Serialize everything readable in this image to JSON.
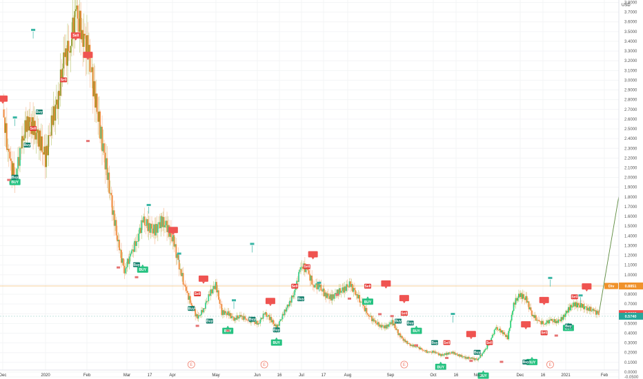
{
  "chart_data": {
    "type": "candlestick",
    "y_unit_label": "USD",
    "y_range": [
      0,
      3.8
    ],
    "y_ticks": [
      "3.8000",
      "3.7000",
      "3.6000",
      "3.5000",
      "3.4000",
      "3.3000",
      "3.2000",
      "3.1000",
      "3.0000",
      "2.9000",
      "2.8000",
      "2.7000",
      "2.6000",
      "2.5000",
      "2.4000",
      "2.3000",
      "2.2000",
      "2.1000",
      "2.0000",
      "1.9000",
      "1.8000",
      "1.7000",
      "1.6000",
      "1.5000",
      "1.4000",
      "1.3000",
      "1.2000",
      "1.1000",
      "1.0000",
      "0.9000",
      "0.8000",
      "0.7000",
      "0.6000",
      "0.5000",
      "0.4000",
      "0.3000",
      "0.2000",
      "0.1000",
      "0.0000",
      "-0.0500"
    ],
    "x_ticks": [
      "Dec",
      "2020",
      "Feb",
      "Mar",
      "17",
      "Apr",
      "May",
      "Jun",
      "16",
      "Jul",
      "17",
      "Aug",
      "Sep",
      "Oct",
      "16",
      "Nov",
      "Dec",
      "16",
      "2021",
      "Feb"
    ],
    "price_badges": [
      {
        "text": "0.8851",
        "value": 0.8851,
        "color": "#f0922b",
        "prefix": "Div"
      },
      {
        "text": "0.6008",
        "value": 0.6008,
        "color": "#ef5350"
      },
      {
        "text": "0.5740",
        "value": 0.574,
        "color": "#26a69a"
      }
    ],
    "close_series": [
      2.7,
      2.2,
      2.0,
      2.3,
      2.6,
      2.5,
      2.4,
      2.2,
      2.55,
      2.8,
      3.2,
      3.35,
      3.7,
      3.5,
      3.3,
      2.9,
      2.5,
      2.1,
      1.7,
      1.3,
      1.05,
      1.2,
      1.35,
      1.55,
      1.5,
      1.45,
      1.55,
      1.5,
      1.35,
      1.1,
      0.85,
      0.7,
      0.55,
      0.65,
      0.8,
      0.9,
      0.62,
      0.6,
      0.55,
      0.57,
      0.55,
      0.52,
      0.5,
      0.6,
      0.55,
      0.45,
      0.58,
      0.7,
      0.82,
      1.1,
      1.05,
      0.9,
      0.88,
      0.8,
      0.76,
      0.82,
      0.85,
      0.9,
      0.82,
      0.7,
      0.6,
      0.52,
      0.48,
      0.46,
      0.52,
      0.4,
      0.32,
      0.28,
      0.26,
      0.23,
      0.2,
      0.21,
      0.17,
      0.19,
      0.2,
      0.17,
      0.15,
      0.14,
      0.13,
      0.2,
      0.3,
      0.45,
      0.42,
      0.35,
      0.7,
      0.8,
      0.75,
      0.6,
      0.52,
      0.5,
      0.53,
      0.52,
      0.55,
      0.65,
      0.7,
      0.68,
      0.66,
      0.63,
      0.6
    ],
    "signals": [
      {
        "type": "sell",
        "label": "",
        "i": 0,
        "v": 2.8
      },
      {
        "type": "buy",
        "label": "BUY",
        "i": 2,
        "v": 1.95
      },
      {
        "type": "sell",
        "label": "Sell",
        "i": 12,
        "v": 3.45
      },
      {
        "type": "sell",
        "label": "",
        "i": 14,
        "v": 3.25
      },
      {
        "type": "buy",
        "label": "BUY",
        "i": 23,
        "v": 1.05
      },
      {
        "type": "sell",
        "label": "",
        "i": 28,
        "v": 1.45
      },
      {
        "type": "sell",
        "label": "",
        "i": 33,
        "v": 0.95
      },
      {
        "type": "buy",
        "label": "BUY",
        "i": 37,
        "v": 0.42
      },
      {
        "type": "sell",
        "label": "",
        "i": 44,
        "v": 0.72
      },
      {
        "type": "buy",
        "label": "BUY",
        "i": 45,
        "v": 0.3
      },
      {
        "type": "sell",
        "label": "",
        "i": 51,
        "v": 1.2
      },
      {
        "type": "sell",
        "label": "",
        "i": 63,
        "v": 0.9
      },
      {
        "type": "buy",
        "label": "BUY",
        "i": 60,
        "v": 0.72
      },
      {
        "type": "sell",
        "label": "",
        "i": 66,
        "v": 0.75
      },
      {
        "type": "buy",
        "label": "BUY",
        "i": 68,
        "v": 0.42
      },
      {
        "type": "buy",
        "label": "BUY",
        "i": 72,
        "v": 0.05
      },
      {
        "type": "sell",
        "label": "",
        "i": 77,
        "v": 0.38
      },
      {
        "type": "buy",
        "label": "BUY",
        "i": 79,
        "v": -0.04
      },
      {
        "type": "sell",
        "label": "",
        "i": 86,
        "v": 0.48
      },
      {
        "type": "buy",
        "label": "BUY",
        "i": 87,
        "v": 0.1
      },
      {
        "type": "sell",
        "label": "",
        "i": 89,
        "v": 0.73
      },
      {
        "type": "buy",
        "label": "BUY",
        "i": 93,
        "v": 0.45
      },
      {
        "type": "sell",
        "label": "",
        "i": 96,
        "v": 0.87
      }
    ],
    "small_tags": [
      {
        "type": "buy",
        "label": "Buy",
        "i": 6,
        "v": 2.67
      },
      {
        "type": "buy",
        "label": "Buy",
        "i": 4,
        "v": 2.33
      },
      {
        "type": "buy",
        "label": "Buy",
        "i": 2,
        "v": 2.0
      },
      {
        "type": "sell",
        "label": "Sell",
        "i": 10,
        "v": 3.0
      },
      {
        "type": "sell",
        "label": "Sell",
        "i": 5,
        "v": 2.5
      },
      {
        "type": "buy",
        "label": "Buy",
        "i": 22,
        "v": 1.1
      },
      {
        "type": "sell",
        "label": "Sell",
        "i": 32,
        "v": 0.8
      },
      {
        "type": "buy",
        "label": "Buy",
        "i": 31,
        "v": 0.65
      },
      {
        "type": "buy",
        "label": "Buy",
        "i": 34,
        "v": 0.52
      },
      {
        "type": "buy",
        "label": "Buy",
        "i": 41,
        "v": 0.54
      },
      {
        "type": "buy",
        "label": "Buy",
        "i": 45,
        "v": 0.43
      },
      {
        "type": "sell",
        "label": "Sell",
        "i": 48,
        "v": 0.88
      },
      {
        "type": "buy",
        "label": "Buy",
        "i": 49,
        "v": 0.75
      },
      {
        "type": "sell",
        "label": "Sell",
        "i": 50,
        "v": 1.08
      },
      {
        "type": "sell",
        "label": "Sell",
        "i": 60,
        "v": 0.88
      },
      {
        "type": "sell",
        "label": "Sell",
        "i": 66,
        "v": 0.6
      },
      {
        "type": "buy",
        "label": "Buy",
        "i": 65,
        "v": 0.52
      },
      {
        "type": "buy",
        "label": "Buy",
        "i": 67,
        "v": 0.5
      },
      {
        "type": "buy",
        "label": "Buy",
        "i": 71,
        "v": 0.3
      },
      {
        "type": "sell",
        "label": "Sell",
        "i": 73,
        "v": 0.3
      },
      {
        "type": "buy",
        "label": "Buy",
        "i": 78,
        "v": 0.2
      },
      {
        "type": "sell",
        "label": "Sell",
        "i": 80,
        "v": 0.3
      },
      {
        "type": "buy",
        "label": "Buy",
        "i": 86,
        "v": 0.1
      },
      {
        "type": "sell",
        "label": "Sell",
        "i": 89,
        "v": 0.4
      },
      {
        "type": "sell",
        "label": "Sell",
        "i": 94,
        "v": 0.77
      },
      {
        "type": "buy",
        "label": "Buy",
        "i": 93,
        "v": 0.47
      }
    ],
    "hh_markers": [
      {
        "i": 5,
        "v": 3.5
      },
      {
        "i": 2,
        "v": 2.6
      },
      {
        "i": 24,
        "v": 1.7
      },
      {
        "i": 29,
        "v": 1.2
      },
      {
        "i": 38,
        "v": 0.72
      },
      {
        "i": 41,
        "v": 1.3
      },
      {
        "i": 52,
        "v": 0.9
      },
      {
        "i": 74,
        "v": 0.58
      },
      {
        "i": 90,
        "v": 0.95
      },
      {
        "i": 95,
        "v": 0.77
      }
    ],
    "ll_markers": [
      {
        "i": 1,
        "v": 2.0
      },
      {
        "i": 14,
        "v": 2.4
      },
      {
        "i": 19,
        "v": 1.1
      },
      {
        "i": 22,
        "v": 1.0
      },
      {
        "i": 32,
        "v": 0.5
      },
      {
        "i": 37,
        "v": 0.45
      },
      {
        "i": 55,
        "v": 0.82
      },
      {
        "i": 57,
        "v": 0.78
      },
      {
        "i": 62,
        "v": 0.62
      },
      {
        "i": 64,
        "v": 0.6
      },
      {
        "i": 68,
        "v": 0.3
      },
      {
        "i": 73,
        "v": 0.17
      },
      {
        "i": 77,
        "v": 0.14
      },
      {
        "i": 82,
        "v": 0.13
      },
      {
        "i": 91,
        "v": 0.4
      }
    ],
    "earnings_markers": [
      {
        "i": 31,
        "label": "E"
      },
      {
        "i": 43,
        "label": "E"
      },
      {
        "i": 66,
        "label": "E"
      },
      {
        "i": 90,
        "label": "E"
      }
    ],
    "projection": {
      "from_i": 98,
      "from_v": 0.6,
      "to_i": 106,
      "to_v": 2.1
    }
  }
}
